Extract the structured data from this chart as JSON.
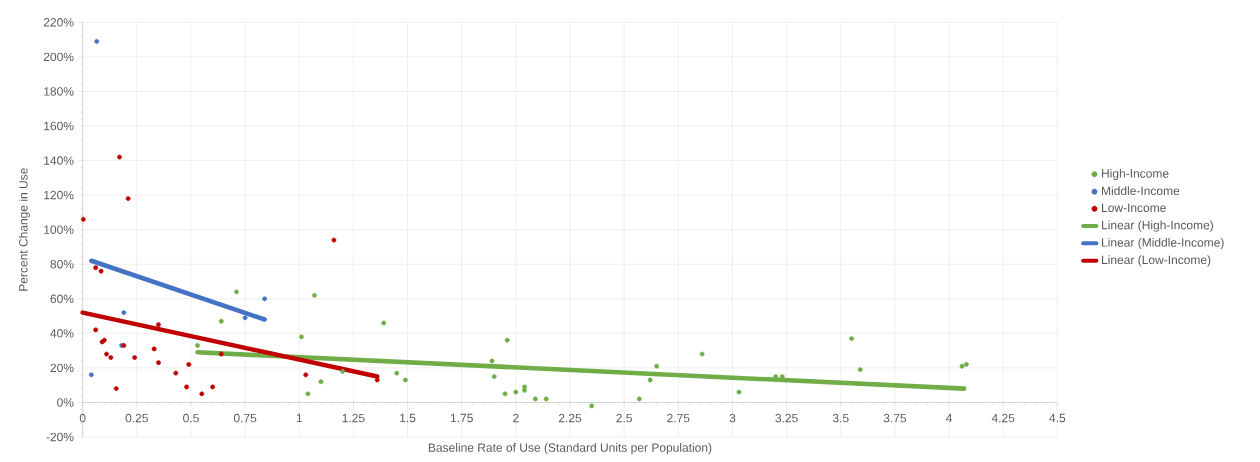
{
  "chart_data": {
    "type": "scatter",
    "xlabel": "Baseline Rate of Use (Standard Units per Population)",
    "ylabel": "Percent Change in Use",
    "xlim": [
      0,
      4.5
    ],
    "ylim": [
      -20,
      220
    ],
    "xticks": [
      0,
      0.25,
      0.5,
      0.75,
      1,
      1.25,
      1.5,
      1.75,
      2,
      2.25,
      2.5,
      2.75,
      3,
      3.25,
      3.5,
      3.75,
      4,
      4.25,
      4.5
    ],
    "yticks": [
      {
        "value": -20,
        "label": "-20%"
      },
      {
        "value": 0,
        "label": "0%"
      },
      {
        "value": 20,
        "label": "20%"
      },
      {
        "value": 40,
        "label": "40%"
      },
      {
        "value": 60,
        "label": "60%"
      },
      {
        "value": 80,
        "label": "80%"
      },
      {
        "value": 100,
        "label": "100%"
      },
      {
        "value": 120,
        "label": "120%"
      },
      {
        "value": 140,
        "label": "140%"
      },
      {
        "value": 160,
        "label": "160%"
      },
      {
        "value": 180,
        "label": "180%"
      },
      {
        "value": 200,
        "label": "200%"
      },
      {
        "value": 220,
        "label": "220%"
      }
    ],
    "grid": true,
    "legend": "right",
    "marker": "circle",
    "series": [
      {
        "name": "High-Income",
        "color": "#70ad47",
        "x": [
          0.53,
          0.64,
          0.71,
          1.01,
          1.04,
          1.07,
          1.1,
          1.2,
          1.39,
          1.45,
          1.49,
          1.89,
          1.9,
          1.95,
          1.96,
          2.0,
          2.04,
          2.04,
          2.09,
          2.14,
          2.35,
          2.57,
          2.62,
          2.65,
          2.86,
          3.03,
          3.2,
          3.23,
          3.55,
          3.59,
          4.06,
          4.08
        ],
        "values": [
          33,
          47,
          64,
          38,
          5,
          62,
          12,
          18,
          46,
          17,
          13,
          24,
          15,
          5,
          36,
          6,
          9,
          7,
          2,
          2,
          -2,
          2,
          13,
          21,
          28,
          6,
          15,
          15,
          37,
          19,
          21,
          22
        ]
      },
      {
        "name": "Middle-Income",
        "color": "#4472c4",
        "x": [
          0.04,
          0.065,
          0.18,
          0.19,
          0.75,
          0.84
        ],
        "values": [
          16,
          209,
          33,
          52,
          49,
          60
        ]
      },
      {
        "name": "Low-Income",
        "color": "#c00000",
        "x": [
          0.003,
          0.06,
          0.06,
          0.085,
          0.09,
          0.1,
          0.11,
          0.13,
          0.155,
          0.17,
          0.19,
          0.21,
          0.24,
          0.33,
          0.35,
          0.35,
          0.43,
          0.48,
          0.49,
          0.55,
          0.6,
          0.64,
          1.03,
          1.16,
          1.36
        ],
        "values": [
          106,
          78,
          42,
          76,
          35,
          36,
          28,
          26,
          8,
          142,
          33,
          118,
          26,
          31,
          45,
          23,
          17,
          9,
          22,
          5,
          9,
          28,
          16,
          94,
          13
        ]
      },
      {
        "name": "Linear (High-Income)",
        "type": "line",
        "marker": "none",
        "color": "#70ad47",
        "x": [
          0.53,
          4.07
        ],
        "values": [
          29,
          8
        ]
      },
      {
        "name": "Linear (Middle-Income)",
        "type": "line",
        "marker": "none",
        "color": "#4472c4",
        "x": [
          0.04,
          0.84
        ],
        "values": [
          82,
          48
        ]
      },
      {
        "name": "Linear (Low-Income)",
        "type": "line",
        "marker": "none",
        "color": "#c00000",
        "x": [
          0,
          1.36
        ],
        "values": [
          52,
          15
        ]
      }
    ]
  }
}
